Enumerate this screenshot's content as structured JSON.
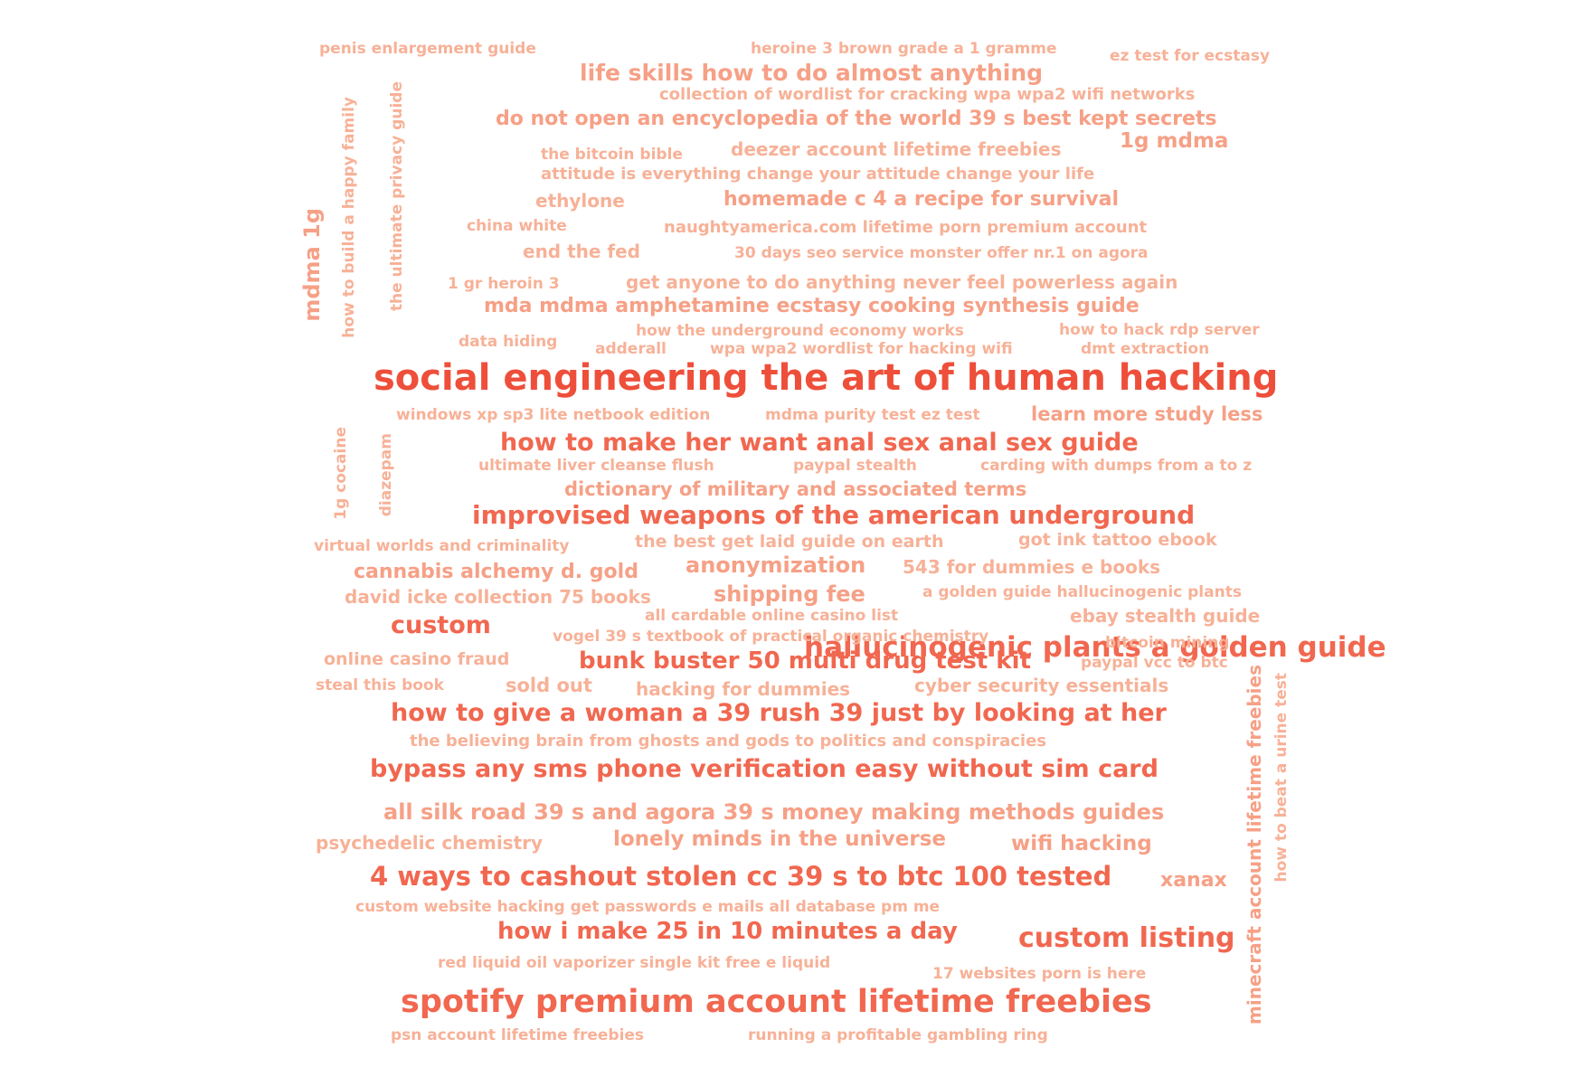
{
  "word_cloud": {
    "colors": {
      "strongest": "#ee4f3a",
      "strong": "#f1674f",
      "medium": "#f4876c",
      "light": "#f6a086",
      "lightest": "#f7b197"
    },
    "words": [
      {
        "text": "social engineering the art of human hacking",
        "tier": "strongest"
      },
      {
        "text": "spotify premium account lifetime freebies",
        "tier": "strong"
      },
      {
        "text": "hallucinogenic plants a golden guide",
        "tier": "strong"
      },
      {
        "text": "improvised weapons of the american underground",
        "tier": "strong"
      },
      {
        "text": "how to give a woman a 39 rush 39 just by looking at her",
        "tier": "strong"
      },
      {
        "text": "4 ways to cashout stolen cc 39 s to btc 100 tested",
        "tier": "strong"
      },
      {
        "text": "how to make her want anal sex anal sex guide",
        "tier": "strong"
      },
      {
        "text": "bypass any sms phone verification easy without sim card",
        "tier": "strong"
      },
      {
        "text": "custom listing",
        "tier": "strong"
      },
      {
        "text": "bunk buster 50 multi drug test kit",
        "tier": "strong"
      },
      {
        "text": "custom",
        "tier": "strong"
      },
      {
        "text": "how i make 25 in 10 minutes a day",
        "tier": "strong"
      },
      {
        "text": "all silk road 39 s and agora 39 s money making methods guides",
        "tier": "light"
      },
      {
        "text": "life skills how to do almost anything",
        "tier": "light"
      },
      {
        "text": "do not open an encyclopedia of the world 39 s best kept secrets",
        "tier": "light"
      },
      {
        "text": "mda mdma amphetamine ecstasy cooking synthesis guide",
        "tier": "light"
      },
      {
        "text": "homemade c 4 a recipe for survival",
        "tier": "light"
      },
      {
        "text": "dictionary of military and associated terms",
        "tier": "light"
      },
      {
        "text": "lonely minds in the universe",
        "tier": "light"
      },
      {
        "text": "shipping fee",
        "tier": "light"
      },
      {
        "text": "anonymization",
        "tier": "light"
      },
      {
        "text": "cannabis alchemy d. gold",
        "tier": "light"
      },
      {
        "text": "learn more study less",
        "tier": "light"
      },
      {
        "text": "1g mdma",
        "tier": "light"
      },
      {
        "text": "xanax",
        "tier": "light"
      },
      {
        "text": "wifi hacking",
        "tier": "light"
      },
      {
        "text": "mdma 1g",
        "tier": "light",
        "vertical": true
      },
      {
        "text": "get anyone to do anything never feel powerless again",
        "tier": "lightest"
      },
      {
        "text": "attitude is everything change your attitude change your life",
        "tier": "lightest"
      },
      {
        "text": "collection of wordlist for cracking wpa wpa2 wifi networks",
        "tier": "lightest"
      },
      {
        "text": "deezer account lifetime freebies",
        "tier": "lightest"
      },
      {
        "text": "naughtyamerica.com lifetime porn premium account",
        "tier": "lightest"
      },
      {
        "text": "ethylone",
        "tier": "lightest"
      },
      {
        "text": "end the fed",
        "tier": "lightest"
      },
      {
        "text": "543 for dummies e books",
        "tier": "lightest"
      },
      {
        "text": "david icke collection 75 books",
        "tier": "lightest"
      },
      {
        "text": "ebay stealth guide",
        "tier": "lightest"
      },
      {
        "text": "the best get laid guide on earth",
        "tier": "lightest"
      },
      {
        "text": "got ink tattoo ebook",
        "tier": "lightest"
      },
      {
        "text": "hacking for dummies",
        "tier": "lightest"
      },
      {
        "text": "cyber security essentials",
        "tier": "lightest"
      },
      {
        "text": "sold out",
        "tier": "lightest"
      },
      {
        "text": "online casino fraud",
        "tier": "lightest"
      },
      {
        "text": "psychedelic chemistry",
        "tier": "lightest"
      },
      {
        "text": "the believing brain from ghosts and gods to politics and conspiracies",
        "tier": "lightest"
      },
      {
        "text": "custom website hacking get passwords e mails all database pm me",
        "tier": "lightest"
      },
      {
        "text": "red liquid oil vaporizer single kit free e liquid",
        "tier": "lightest"
      },
      {
        "text": "17 websites porn is here",
        "tier": "lightest"
      },
      {
        "text": "psn account lifetime freebies",
        "tier": "lightest"
      },
      {
        "text": "running a profitable gambling ring",
        "tier": "lightest"
      },
      {
        "text": "penis enlargement guide",
        "tier": "lightest"
      },
      {
        "text": "heroine 3 brown grade a 1 gramme",
        "tier": "lightest"
      },
      {
        "text": "ez test for ecstasy",
        "tier": "lightest"
      },
      {
        "text": "the bitcoin bible",
        "tier": "lightest"
      },
      {
        "text": "china white",
        "tier": "lightest"
      },
      {
        "text": "30 days seo service monster offer nr.1 on agora",
        "tier": "lightest"
      },
      {
        "text": "1 gr heroin 3",
        "tier": "lightest"
      },
      {
        "text": "data hiding",
        "tier": "lightest"
      },
      {
        "text": "how the underground economy works",
        "tier": "lightest"
      },
      {
        "text": "how to hack rdp server",
        "tier": "lightest"
      },
      {
        "text": "adderall",
        "tier": "lightest"
      },
      {
        "text": "wpa wpa2 wordlist for hacking wifi",
        "tier": "lightest"
      },
      {
        "text": "dmt extraction",
        "tier": "lightest"
      },
      {
        "text": "windows xp sp3 lite netbook edition",
        "tier": "lightest"
      },
      {
        "text": "mdma purity test ez test",
        "tier": "lightest"
      },
      {
        "text": "ultimate liver cleanse flush",
        "tier": "lightest"
      },
      {
        "text": "paypal stealth",
        "tier": "lightest"
      },
      {
        "text": "carding with dumps from a to z",
        "tier": "lightest"
      },
      {
        "text": "virtual worlds and criminality",
        "tier": "lightest"
      },
      {
        "text": "a golden guide hallucinogenic plants",
        "tier": "lightest"
      },
      {
        "text": "all cardable online casino list",
        "tier": "lightest"
      },
      {
        "text": "vogel 39 s textbook of practical organic chemistry",
        "tier": "lightest"
      },
      {
        "text": "bitcoin mining",
        "tier": "lightest"
      },
      {
        "text": "paypal vcc to btc",
        "tier": "lightest"
      },
      {
        "text": "steal this book",
        "tier": "lightest"
      },
      {
        "text": "how to build a happy family",
        "tier": "lightest",
        "vertical": true
      },
      {
        "text": "the ultimate privacy guide",
        "tier": "lightest",
        "vertical": true
      },
      {
        "text": "1g cocaine",
        "tier": "lightest",
        "vertical": true
      },
      {
        "text": "diazepam",
        "tier": "lightest",
        "vertical": true
      },
      {
        "text": "minecraft account lifetime freebies",
        "tier": "light",
        "vertical": true
      },
      {
        "text": "how to beat a urine test",
        "tier": "lightest",
        "vertical": true
      }
    ]
  }
}
